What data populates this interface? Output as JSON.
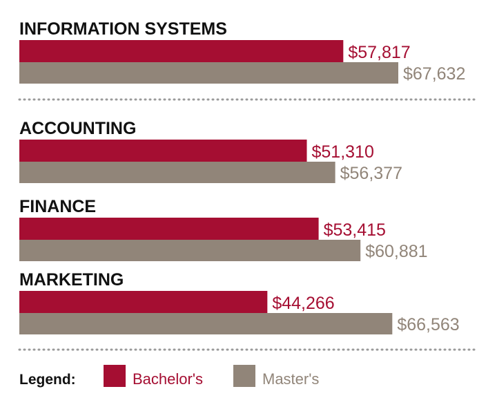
{
  "chart_data": {
    "type": "bar",
    "orientation": "horizontal",
    "title": "",
    "xlabel": "",
    "ylabel": "",
    "categories": [
      "INFORMATION SYSTEMS",
      "ACCOUNTING",
      "FINANCE",
      "MARKETING"
    ],
    "series": [
      {
        "name": "Bachelor's",
        "color": "#a50e32",
        "values": [
          57817,
          51310,
          53415,
          44266
        ],
        "value_labels": [
          "$57,817",
          "$51,310",
          "$53,415",
          "$44,266"
        ]
      },
      {
        "name": "Master's",
        "color": "#918579",
        "values": [
          67632,
          56377,
          60881,
          66563
        ],
        "value_labels": [
          "$67,632",
          "$56,377",
          "$60,881",
          "$66,563"
        ]
      }
    ],
    "xlim": [
      0,
      67632
    ],
    "grid": false,
    "legend": {
      "title": "Legend:",
      "placement": "bottom-left",
      "entries": [
        "Bachelor's",
        "Master's"
      ]
    }
  }
}
